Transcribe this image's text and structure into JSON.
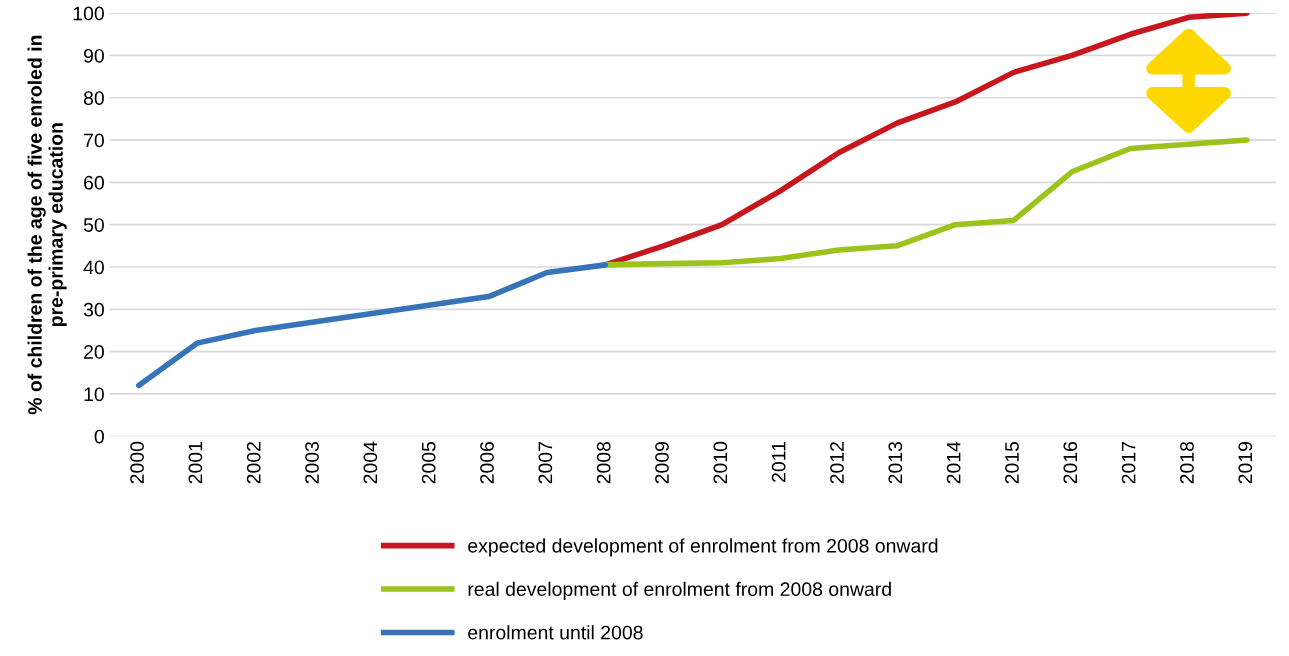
{
  "chart_data": {
    "type": "line",
    "ylabel": "% of children of the age of five enroled in pre-primary education",
    "categories": [
      "2000",
      "2001",
      "2002",
      "2003",
      "2004",
      "2005",
      "2006",
      "2007",
      "2008",
      "2009",
      "2010",
      "2011",
      "2012",
      "2013",
      "2014",
      "2015",
      "2016",
      "2017",
      "2018",
      "2019"
    ],
    "series": [
      {
        "name": "expected development of enrolment from 2008 onward",
        "color": "#c8161e",
        "values": [
          null,
          null,
          null,
          null,
          null,
          null,
          null,
          null,
          40.5,
          45,
          50,
          58,
          67,
          74,
          79,
          86,
          90,
          95,
          99,
          100
        ]
      },
      {
        "name": "real development of enrolment from 2008 onward",
        "color": "#9bc31c",
        "values": [
          null,
          null,
          null,
          null,
          null,
          null,
          null,
          null,
          40.5,
          40.8,
          41,
          42,
          44,
          45,
          50,
          51,
          62.5,
          68,
          69,
          70
        ]
      },
      {
        "name": "enrolment until 2008",
        "color": "#3673b8",
        "values": [
          12,
          22,
          25,
          27,
          29,
          31,
          33,
          38.7,
          40.5,
          null,
          null,
          null,
          null,
          null,
          null,
          null,
          null,
          null,
          null,
          null
        ]
      }
    ],
    "ylim": [
      0,
      100
    ],
    "yticks": [
      0,
      10,
      20,
      30,
      40,
      50,
      60,
      70,
      80,
      90,
      100
    ],
    "grid": "y",
    "legend": "bottom",
    "marker": "none",
    "line_style": "solid"
  }
}
